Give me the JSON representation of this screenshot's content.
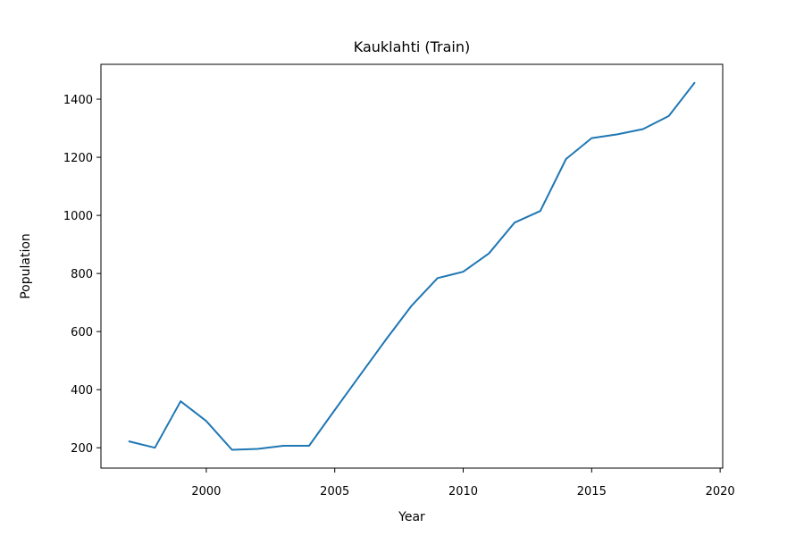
{
  "chart_data": {
    "type": "line",
    "title": "Kauklahti (Train)",
    "xlabel": "Year",
    "ylabel": "Population",
    "xlim": [
      1995.9,
      2020.1
    ],
    "ylim": [
      130,
      1520
    ],
    "xticks": [
      2000,
      2005,
      2010,
      2015,
      2020
    ],
    "yticks": [
      200,
      400,
      600,
      800,
      1000,
      1200,
      1400
    ],
    "grid": false,
    "series": [
      {
        "color": "#1f77b4",
        "x": [
          1997,
          1998,
          1999,
          2000,
          2001,
          2002,
          2003,
          2004,
          2005,
          2006,
          2007,
          2008,
          2009,
          2010,
          2011,
          2012,
          2013,
          2014,
          2015,
          2016,
          2017,
          2018,
          2019
        ],
        "y": [
          222,
          200,
          360,
          292,
          193,
          196,
          207,
          207,
          330,
          452,
          573,
          690,
          784,
          806,
          869,
          975,
          1015,
          1194,
          1266,
          1279,
          1297,
          1342,
          1456
        ]
      }
    ]
  }
}
